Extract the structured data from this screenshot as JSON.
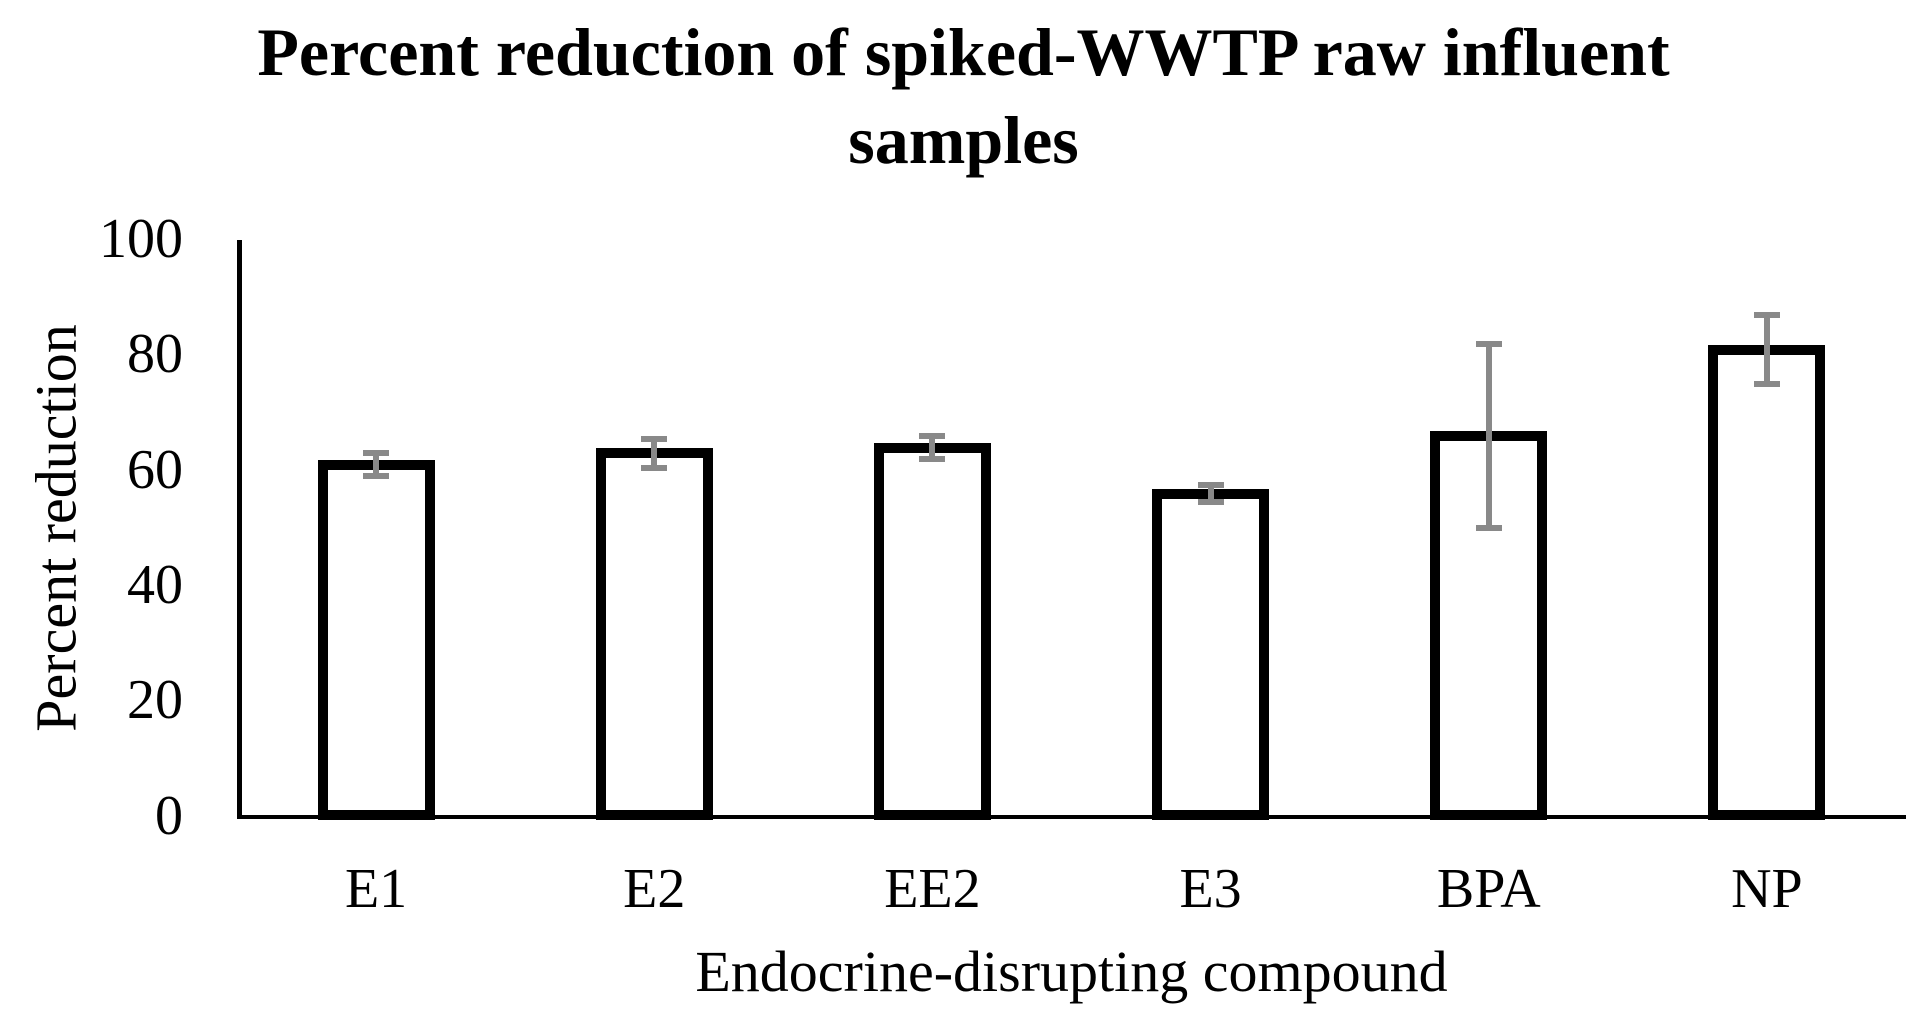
{
  "chart_data": {
    "type": "bar",
    "title": "Percent reduction of spiked-WWTP raw influent samples",
    "xlabel": "Endocrine-disrupting compound",
    "ylabel": "Percent reduction",
    "categories": [
      "E1",
      "E2",
      "EE2",
      "E3",
      "BPA",
      "NP"
    ],
    "values": [
      61,
      63,
      64,
      56,
      66,
      81
    ],
    "error_bars": [
      2,
      2.5,
      2,
      1.5,
      16,
      6
    ],
    "ylim": [
      0,
      100
    ],
    "yticks": [
      0,
      20,
      40,
      60,
      80,
      100
    ],
    "grid": false,
    "legend": false,
    "bar_fill": "#ffffff",
    "bar_border": "#000000",
    "error_color": "#898989",
    "background": "#ffffff"
  }
}
